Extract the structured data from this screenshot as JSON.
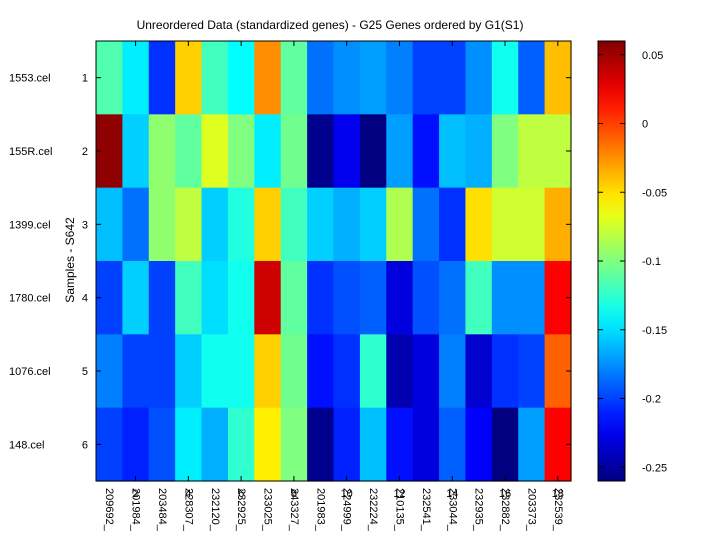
{
  "chart_data": {
    "type": "heatmap",
    "title": "Unreordered Data (standardized genes) - G25 Genes ordered by G1(S1)",
    "xlabel": "",
    "ylabel": "Samples - S642",
    "x_ticks": [
      2,
      4,
      6,
      8,
      10,
      12,
      14,
      16,
      18
    ],
    "y_ticks": [
      1,
      2,
      3,
      4,
      5,
      6
    ],
    "row_labels": [
      "1553.cel",
      "155R.cel",
      "1399.cel",
      "1780.cel",
      "1076.cel",
      "148.cel"
    ],
    "column_labels": [
      "209692_",
      "201984_",
      "203484_",
      "228307_",
      "232120_",
      "232925_",
      "233025_",
      "243327_",
      "201983_",
      "224999_",
      "232224_",
      "210135_",
      "232541_",
      "233044_",
      "232935_",
      "232882_",
      "203373_",
      "232539_"
    ],
    "colorbar": {
      "min": -0.26,
      "max": 0.06,
      "ticks": [
        0.05,
        0,
        -0.05,
        -0.1,
        -0.15,
        -0.2,
        -0.25
      ]
    },
    "values": [
      [
        -0.115,
        -0.145,
        -0.205,
        -0.045,
        -0.12,
        -0.14,
        -0.025,
        -0.11,
        -0.185,
        -0.175,
        -0.17,
        -0.18,
        -0.2,
        -0.2,
        -0.175,
        -0.135,
        -0.19,
        -0.04
      ],
      [
        0.055,
        -0.155,
        -0.095,
        -0.11,
        -0.07,
        -0.1,
        -0.145,
        -0.105,
        -0.255,
        -0.225,
        -0.26,
        -0.17,
        -0.215,
        -0.16,
        -0.165,
        -0.1,
        -0.08,
        -0.08
      ],
      [
        -0.16,
        -0.185,
        -0.095,
        -0.08,
        -0.155,
        -0.13,
        -0.045,
        -0.12,
        -0.155,
        -0.165,
        -0.155,
        -0.085,
        -0.185,
        -0.205,
        -0.05,
        -0.075,
        -0.075,
        -0.035
      ],
      [
        -0.2,
        -0.155,
        -0.2,
        -0.12,
        -0.15,
        -0.135,
        0.035,
        -0.11,
        -0.205,
        -0.195,
        -0.19,
        -0.23,
        -0.195,
        -0.185,
        -0.12,
        -0.175,
        -0.175,
        0.02
      ],
      [
        -0.18,
        -0.2,
        -0.2,
        -0.155,
        -0.135,
        -0.135,
        -0.045,
        -0.105,
        -0.215,
        -0.205,
        -0.125,
        -0.245,
        -0.23,
        -0.18,
        -0.235,
        -0.205,
        -0.2,
        -0.01
      ],
      [
        -0.2,
        -0.21,
        -0.195,
        -0.145,
        -0.165,
        -0.125,
        -0.055,
        -0.1,
        -0.255,
        -0.21,
        -0.16,
        -0.215,
        -0.23,
        -0.19,
        -0.22,
        -0.26,
        -0.17,
        0.02
      ]
    ]
  }
}
